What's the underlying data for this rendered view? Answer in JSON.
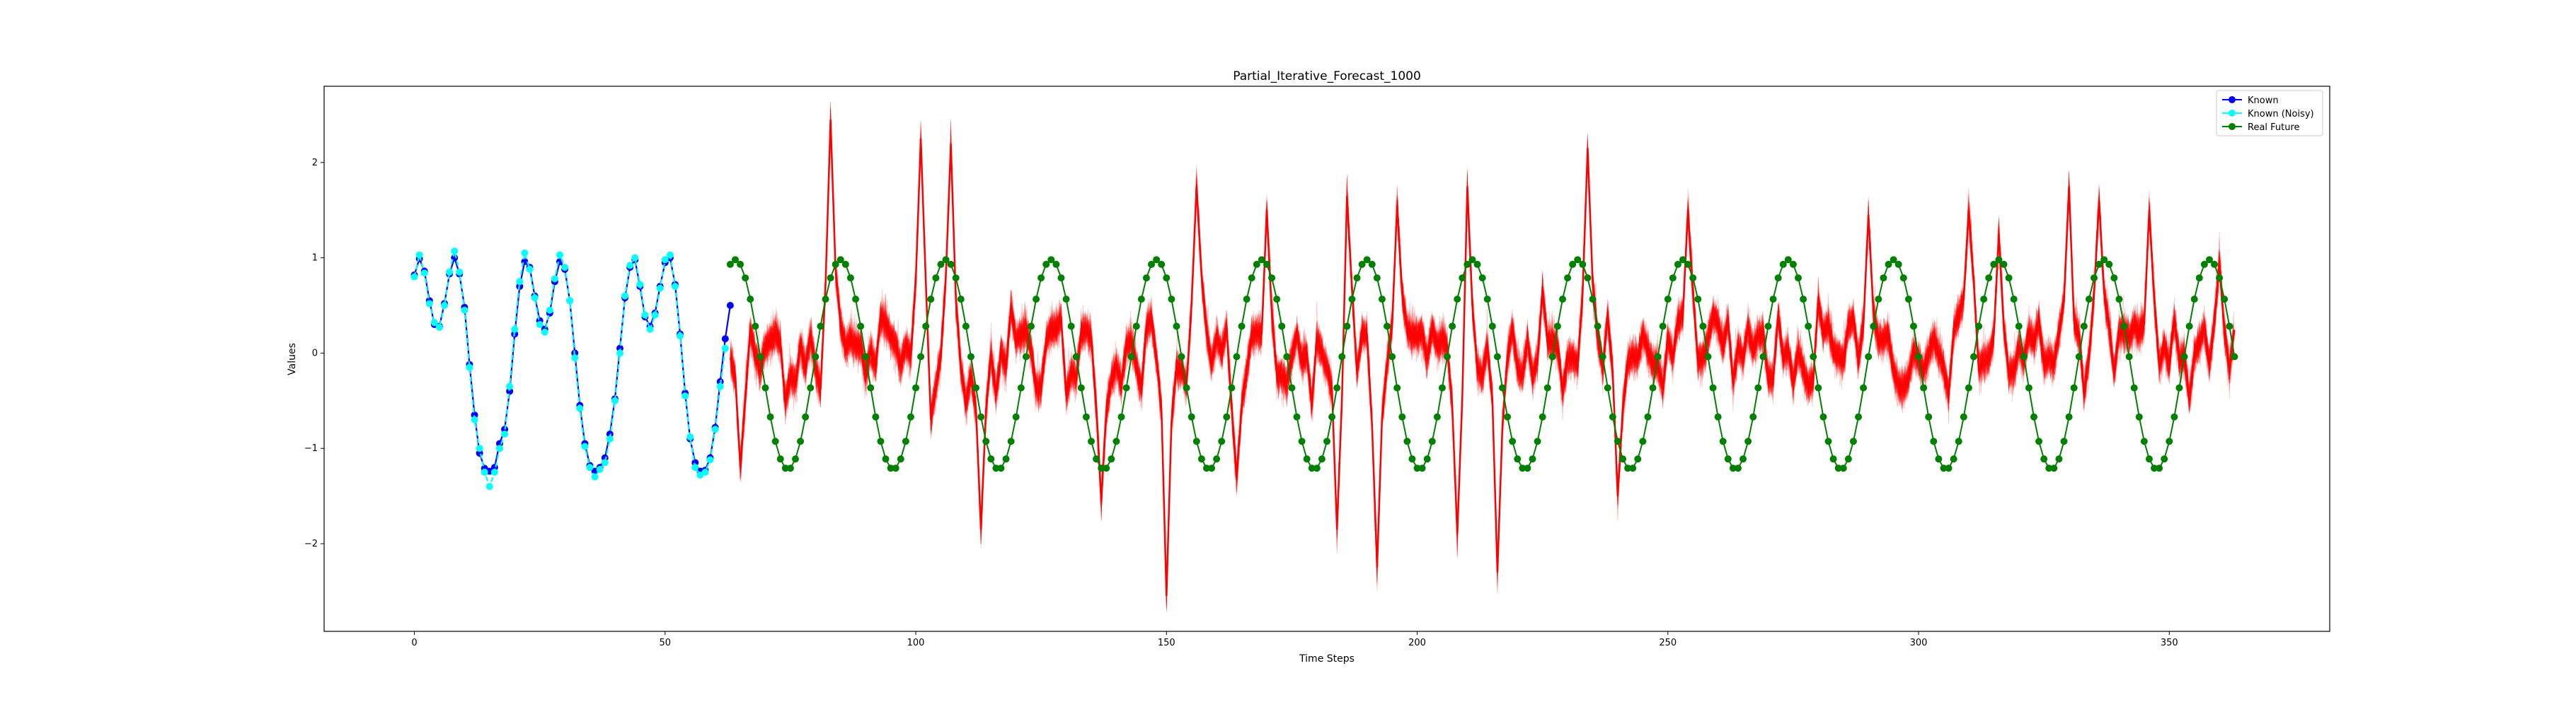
{
  "chart_data": {
    "type": "line",
    "title": "Partial_Iterative_Forecast_1000",
    "xlabel": "Time Steps",
    "ylabel": "Values",
    "xlim": [
      -18,
      382
    ],
    "ylim": [
      -2.92,
      2.8
    ],
    "xticks": [
      0,
      50,
      100,
      150,
      200,
      250,
      300,
      350
    ],
    "yticks": [
      -2,
      -1,
      0,
      1,
      2
    ],
    "grid": false,
    "legend_position": "top-right",
    "series": [
      {
        "name": "Known",
        "color": "#0000ff",
        "marker": "circle",
        "x": [
          0,
          1,
          2,
          3,
          4,
          5,
          6,
          7,
          8,
          9,
          10,
          11,
          12,
          13,
          14,
          15,
          16,
          17,
          18,
          19,
          20,
          21,
          22,
          23,
          24,
          25,
          26,
          27,
          28,
          29,
          30,
          31,
          32,
          33,
          34,
          35,
          36,
          37,
          38,
          39,
          40,
          41,
          42,
          43,
          44,
          45,
          46,
          47,
          48,
          49,
          50,
          51,
          52,
          53,
          54,
          55,
          56,
          57,
          58,
          59,
          60,
          61,
          62,
          63
        ],
        "values": [
          0.82,
          0.99,
          0.86,
          0.55,
          0.3,
          0.28,
          0.52,
          0.83,
          1.0,
          0.83,
          0.48,
          -0.12,
          -0.65,
          -1.05,
          -1.21,
          -1.24,
          -1.2,
          -0.95,
          -0.8,
          -0.4,
          0.2,
          0.7,
          0.96,
          0.9,
          0.6,
          0.34,
          0.25,
          0.42,
          0.75,
          0.96,
          0.88,
          0.55,
          0.0,
          -0.55,
          -0.95,
          -1.18,
          -1.24,
          -1.2,
          -1.1,
          -0.85,
          -0.48,
          0.05,
          0.58,
          0.9,
          0.98,
          0.7,
          0.38,
          0.28,
          0.42,
          0.7,
          0.95,
          1.0,
          0.72,
          0.2,
          -0.42,
          -0.9,
          -1.15,
          -1.24,
          -1.23,
          -1.1,
          -0.78,
          -0.3,
          0.15,
          0.5
        ]
      },
      {
        "name": "Known (Noisy)",
        "color": "#00ffff",
        "marker": "circle",
        "x": [
          0,
          1,
          2,
          3,
          4,
          5,
          6,
          7,
          8,
          9,
          10,
          11,
          12,
          13,
          14,
          15,
          16,
          17,
          18,
          19,
          20,
          21,
          22,
          23,
          24,
          25,
          26,
          27,
          28,
          29,
          30,
          31,
          32,
          33,
          34,
          35,
          36,
          37,
          38,
          39,
          40,
          41,
          42,
          43,
          44,
          45,
          46,
          47,
          48,
          49,
          50,
          51,
          52,
          53,
          54,
          55,
          56,
          57,
          58,
          59,
          60,
          61,
          62
        ],
        "values": [
          0.8,
          1.03,
          0.84,
          0.52,
          0.32,
          0.27,
          0.5,
          0.85,
          1.07,
          0.85,
          0.45,
          -0.15,
          -0.7,
          -1.0,
          -1.25,
          -1.4,
          -1.25,
          -1.0,
          -0.85,
          -0.35,
          0.25,
          0.75,
          1.05,
          0.88,
          0.58,
          0.3,
          0.22,
          0.45,
          0.78,
          1.03,
          0.9,
          0.55,
          -0.05,
          -0.58,
          -0.98,
          -1.2,
          -1.3,
          -1.22,
          -1.15,
          -0.9,
          -0.5,
          0.0,
          0.6,
          0.92,
          1.0,
          0.72,
          0.4,
          0.25,
          0.4,
          0.68,
          0.98,
          1.03,
          0.7,
          0.18,
          -0.45,
          -0.88,
          -1.2,
          -1.28,
          -1.25,
          -1.12,
          -0.8,
          -0.35,
          0.05
        ]
      },
      {
        "name": "Real Future",
        "color": "#008000",
        "marker": "circle",
        "x_start": 63,
        "x_end": 363,
        "period": 21,
        "amplitude": 1.1,
        "offset": -0.12,
        "phase_reference_x": 64
      },
      {
        "name": "",
        "color": "#ff0000",
        "description_of_band": "forecast ensemble spread",
        "x_start": 63,
        "x_end": 363,
        "spikes": [
          {
            "x": 65,
            "y": -1.2
          },
          {
            "x": 83,
            "y": 2.45
          },
          {
            "x": 101,
            "y": 2.25
          },
          {
            "x": 107,
            "y": 2.2
          },
          {
            "x": 113,
            "y": -1.85
          },
          {
            "x": 137,
            "y": -1.55
          },
          {
            "x": 150,
            "y": -2.55
          },
          {
            "x": 156,
            "y": 1.75
          },
          {
            "x": 164,
            "y": -1.3
          },
          {
            "x": 170,
            "y": 1.5
          },
          {
            "x": 184,
            "y": -1.85
          },
          {
            "x": 186,
            "y": 1.65
          },
          {
            "x": 192,
            "y": -2.25
          },
          {
            "x": 196,
            "y": 1.55
          },
          {
            "x": 208,
            "y": -1.9
          },
          {
            "x": 210,
            "y": 1.75
          },
          {
            "x": 216,
            "y": -2.3
          },
          {
            "x": 234,
            "y": 2.15
          },
          {
            "x": 240,
            "y": -1.5
          },
          {
            "x": 254,
            "y": 1.5
          },
          {
            "x": 290,
            "y": 1.45
          },
          {
            "x": 310,
            "y": 1.5
          },
          {
            "x": 316,
            "y": 1.25
          },
          {
            "x": 330,
            "y": 1.75
          },
          {
            "x": 336,
            "y": 1.6
          },
          {
            "x": 346,
            "y": 1.5
          },
          {
            "x": 360,
            "y": 0.95
          }
        ]
      }
    ]
  }
}
